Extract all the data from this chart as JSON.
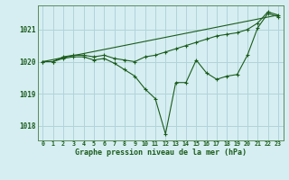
{
  "title": "Graphe pression niveau de la mer (hPa)",
  "background_color": "#d6eef2",
  "grid_color": "#b0d4da",
  "line_color": "#1a5c1a",
  "xlim": [
    -0.5,
    23.5
  ],
  "ylim": [
    1017.55,
    1021.75
  ],
  "yticks": [
    1018,
    1019,
    1020,
    1021
  ],
  "series1_x": [
    0,
    1,
    2,
    3,
    4,
    5,
    6,
    7,
    8,
    9,
    10,
    11,
    12,
    13,
    14,
    15,
    16,
    17,
    18,
    19,
    20,
    21,
    22,
    23
  ],
  "series1_y": [
    1020.0,
    1020.0,
    1020.15,
    1020.2,
    1020.2,
    1020.15,
    1020.2,
    1020.1,
    1020.05,
    1020.0,
    1020.15,
    1020.2,
    1020.3,
    1020.4,
    1020.5,
    1020.6,
    1020.7,
    1020.8,
    1020.85,
    1020.9,
    1021.0,
    1021.2,
    1021.55,
    1021.45
  ],
  "series2_x": [
    0,
    1,
    2,
    3,
    4,
    5,
    6,
    7,
    8,
    9,
    10,
    11,
    12,
    13,
    14,
    15,
    16,
    17,
    18,
    19,
    20,
    21,
    22,
    23
  ],
  "series2_y": [
    1020.0,
    1020.0,
    1020.1,
    1020.15,
    1020.15,
    1020.05,
    1020.1,
    1019.95,
    1019.75,
    1019.55,
    1019.15,
    1018.85,
    1017.75,
    1019.35,
    1019.35,
    1020.05,
    1019.65,
    1019.45,
    1019.55,
    1019.6,
    1020.2,
    1021.05,
    1021.5,
    1021.4
  ],
  "series3_x": [
    0,
    23
  ],
  "series3_y": [
    1020.0,
    1021.45
  ]
}
